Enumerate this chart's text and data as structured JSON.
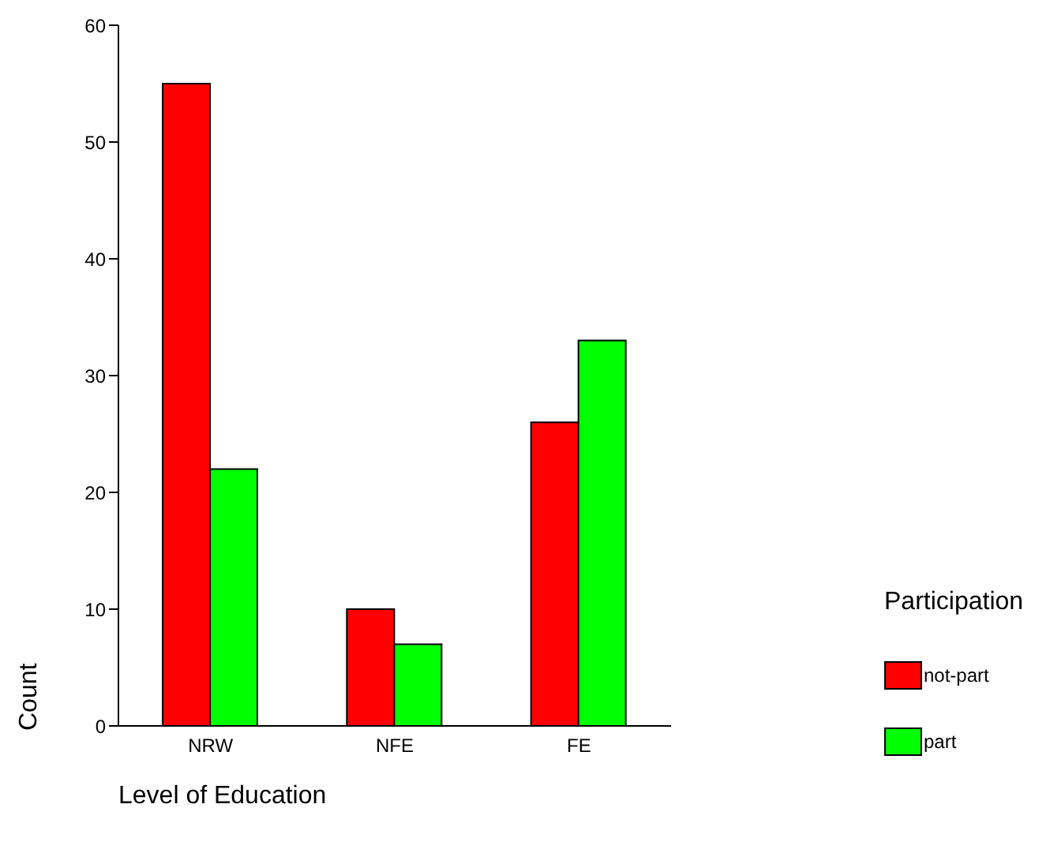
{
  "chart_data": {
    "type": "bar",
    "xlabel": "Level of Education",
    "ylabel": "Count",
    "legend_title": "Participation",
    "categories": [
      "NRW",
      "NFE",
      "FE"
    ],
    "series": [
      {
        "name": "not-part",
        "color": "#ff0000",
        "values": [
          55,
          10,
          26
        ]
      },
      {
        "name": "part",
        "color": "#00ff00",
        "values": [
          22,
          7,
          33
        ]
      }
    ],
    "ylim": [
      0,
      60
    ],
    "yticks": [
      0,
      10,
      20,
      30,
      40,
      50,
      60
    ],
    "grid": false,
    "legend": "right"
  }
}
